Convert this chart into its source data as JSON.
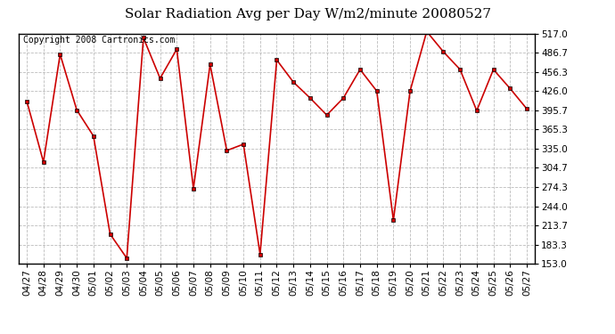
{
  "title": "Solar Radiation Avg per Day W/m2/minute 20080527",
  "copyright": "Copyright 2008 Cartronics.com",
  "dates": [
    "04/27",
    "04/28",
    "04/29",
    "04/30",
    "05/01",
    "05/02",
    "05/03",
    "05/04",
    "05/05",
    "05/06",
    "05/07",
    "05/08",
    "05/09",
    "05/10",
    "05/11",
    "05/12",
    "05/13",
    "05/14",
    "05/15",
    "05/16",
    "05/17",
    "05/18",
    "05/19",
    "05/20",
    "05/21",
    "05/22",
    "05/23",
    "05/24",
    "05/25",
    "05/26",
    "05/27"
  ],
  "values": [
    410,
    314,
    484,
    396,
    355,
    200,
    162,
    510,
    446,
    492,
    272,
    468,
    332,
    342,
    168,
    475,
    440,
    415,
    388,
    415,
    460,
    426,
    222,
    426,
    520,
    488,
    460,
    395,
    460,
    430,
    398
  ],
  "y_ticks": [
    153.0,
    183.3,
    213.7,
    244.0,
    274.3,
    304.7,
    335.0,
    365.3,
    395.7,
    426.0,
    456.3,
    486.7,
    517.0
  ],
  "ylim": [
    153.0,
    517.0
  ],
  "line_color": "#cc0000",
  "marker_color": "#cc0000",
  "marker": "s",
  "grid_color": "#bbbbbb",
  "bg_color": "#ffffff",
  "title_fontsize": 11,
  "copyright_fontsize": 7,
  "tick_fontsize": 7.5
}
